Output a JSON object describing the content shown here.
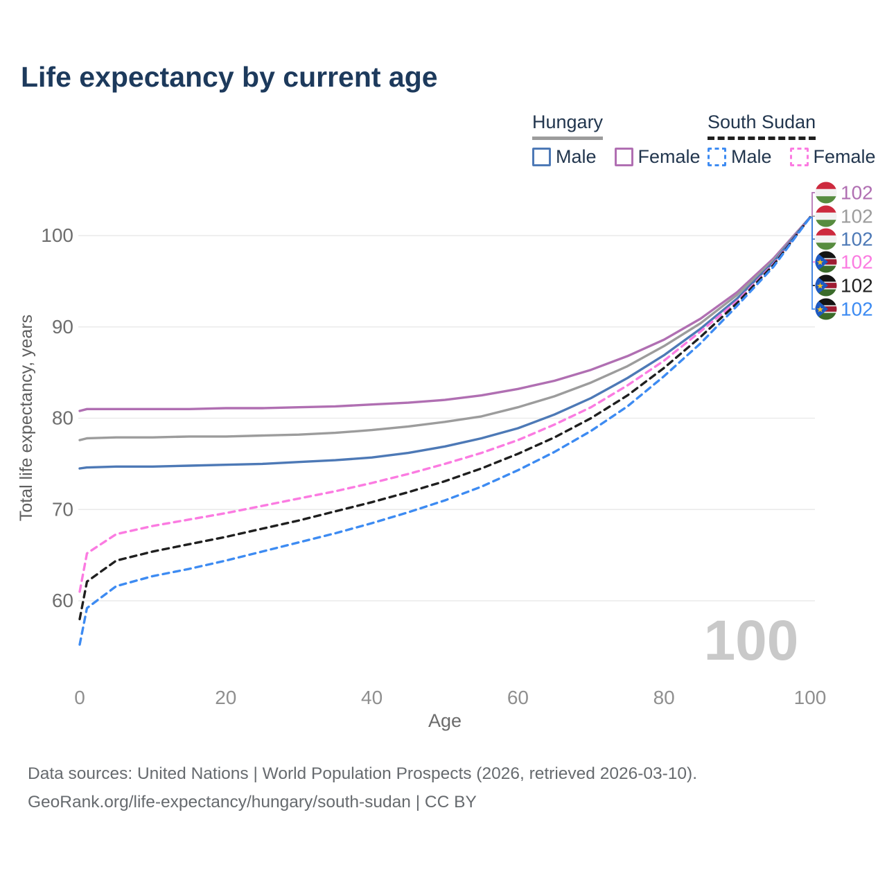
{
  "title": "Life expectancy by current age",
  "legend": {
    "groups": [
      {
        "label": "Hungary",
        "line_style": "solid",
        "color": "#9c9c9c",
        "items": [
          {
            "label": "Male",
            "color": "#4d79b6"
          },
          {
            "label": "Female",
            "color": "#b06fb2"
          }
        ]
      },
      {
        "label": "South Sudan",
        "line_style": "dashed",
        "color": "#1f1f1f",
        "items": [
          {
            "label": "Male",
            "color": "#3d8bf2"
          },
          {
            "label": "Female",
            "color": "#fb7be1"
          }
        ]
      }
    ]
  },
  "chart_data": {
    "type": "line",
    "title": "Life expectancy by current age",
    "xlabel": "Age",
    "ylabel": "Total life expectancy, years",
    "x_ticks": [
      0,
      20,
      40,
      60,
      80,
      100
    ],
    "y_ticks": [
      60,
      70,
      80,
      90,
      100
    ],
    "xlim": [
      0,
      100
    ],
    "ylim": [
      54,
      103
    ],
    "grid": "horizontal",
    "legend_position": "top-right",
    "watermark": "100",
    "ages": [
      0,
      1,
      5,
      10,
      15,
      20,
      25,
      30,
      35,
      40,
      45,
      50,
      55,
      60,
      65,
      70,
      75,
      80,
      85,
      90,
      95,
      100
    ],
    "series": [
      {
        "name": "Hungary Female",
        "country": "Hungary",
        "sex": "Female",
        "flag": "hungary",
        "color": "#b06fb2",
        "dash": false,
        "end_label": "102",
        "values": [
          80.8,
          81.0,
          81.0,
          81.0,
          81.0,
          81.1,
          81.1,
          81.2,
          81.3,
          81.5,
          81.7,
          82.0,
          82.5,
          83.2,
          84.1,
          85.3,
          86.8,
          88.6,
          90.9,
          93.8,
          97.5,
          102
        ]
      },
      {
        "name": "Hungary Both sexes",
        "country": "Hungary",
        "sex": "Both",
        "flag": "hungary",
        "color": "#9c9c9c",
        "dash": false,
        "end_label": "102",
        "values": [
          77.6,
          77.8,
          77.9,
          77.9,
          78.0,
          78.0,
          78.1,
          78.2,
          78.4,
          78.7,
          79.1,
          79.6,
          80.2,
          81.2,
          82.4,
          83.9,
          85.7,
          87.9,
          90.4,
          93.5,
          97.3,
          102
        ]
      },
      {
        "name": "Hungary Male",
        "country": "Hungary",
        "sex": "Male",
        "flag": "hungary",
        "color": "#4d79b6",
        "dash": false,
        "end_label": "102",
        "values": [
          74.5,
          74.6,
          74.7,
          74.7,
          74.8,
          74.9,
          75.0,
          75.2,
          75.4,
          75.7,
          76.2,
          76.9,
          77.8,
          78.9,
          80.4,
          82.2,
          84.4,
          86.9,
          89.8,
          93.1,
          97.1,
          102
        ]
      },
      {
        "name": "South Sudan Female",
        "country": "South Sudan",
        "sex": "Female",
        "flag": "south-sudan",
        "color": "#fb7be1",
        "dash": true,
        "end_label": "102",
        "values": [
          61.0,
          65.2,
          67.3,
          68.2,
          68.9,
          69.6,
          70.4,
          71.2,
          72.0,
          72.9,
          73.9,
          75.0,
          76.2,
          77.6,
          79.3,
          81.2,
          83.6,
          86.3,
          89.5,
          92.8,
          96.9,
          102
        ]
      },
      {
        "name": "South Sudan Both sexes",
        "country": "South Sudan",
        "sex": "Both",
        "flag": "south-sudan",
        "color": "#1f1f1f",
        "dash": true,
        "end_label": "102",
        "values": [
          58.0,
          62.1,
          64.4,
          65.4,
          66.2,
          67.0,
          67.9,
          68.8,
          69.8,
          70.8,
          71.9,
          73.1,
          74.5,
          76.1,
          77.9,
          80.0,
          82.5,
          85.5,
          88.9,
          92.6,
          96.8,
          102
        ]
      },
      {
        "name": "South Sudan Male",
        "country": "South Sudan",
        "sex": "Male",
        "flag": "south-sudan",
        "color": "#3d8bf2",
        "dash": true,
        "end_label": "102",
        "values": [
          55.2,
          59.2,
          61.6,
          62.7,
          63.5,
          64.4,
          65.4,
          66.4,
          67.4,
          68.5,
          69.7,
          71.0,
          72.5,
          74.3,
          76.3,
          78.6,
          81.3,
          84.6,
          88.2,
          92.3,
          96.6,
          102
        ]
      }
    ]
  },
  "footer": {
    "line1": "Data sources: United Nations | World Population Prospects (2026, retrieved 2026-03-10).",
    "line2": "GeoRank.org/life-expectancy/hungary/south-sudan | CC BY"
  }
}
